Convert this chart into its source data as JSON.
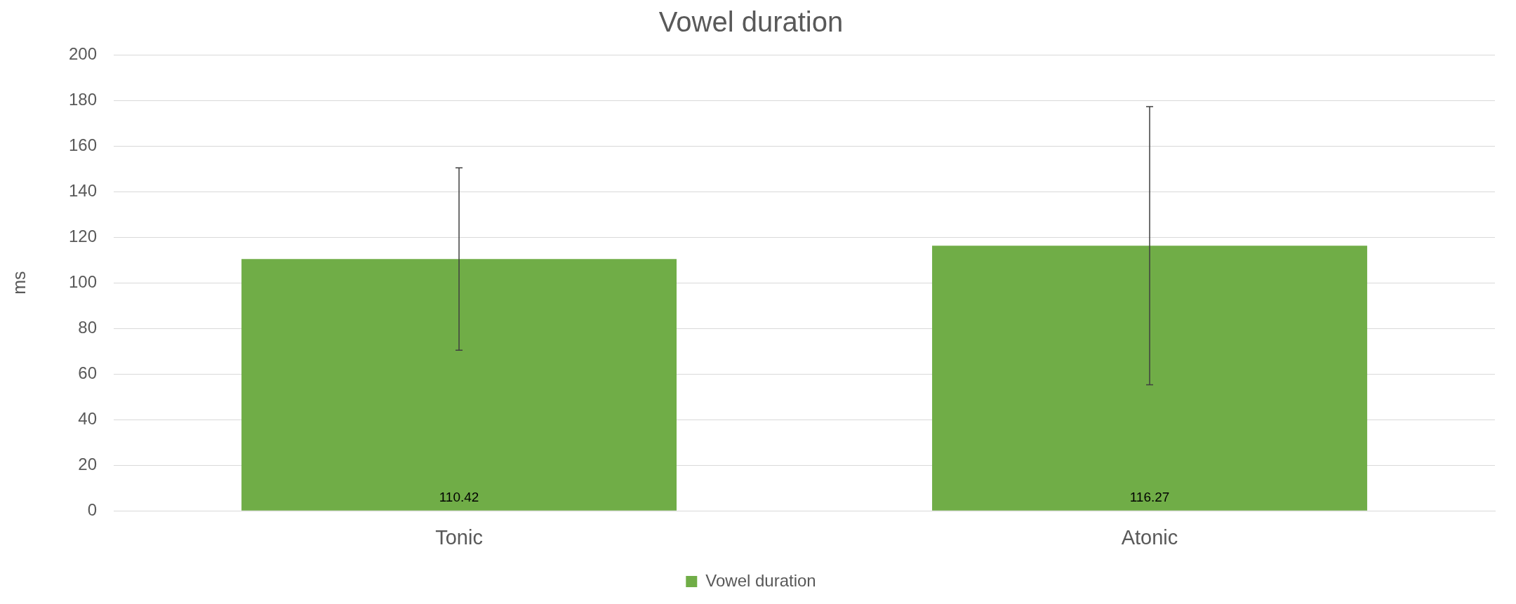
{
  "chart_data": {
    "type": "bar",
    "title": "Vowel duration",
    "ylabel": "ms",
    "categories": [
      "Tonic",
      "Atonic"
    ],
    "series": [
      {
        "name": "Vowel duration",
        "color": "#70ad47",
        "values": [
          110.42,
          116.27
        ],
        "errors": [
          40,
          61
        ]
      }
    ],
    "ylim": [
      0,
      200
    ],
    "yticks": [
      0,
      20,
      40,
      60,
      80,
      100,
      120,
      140,
      160,
      180,
      200
    ],
    "grid": "y",
    "legend": "bottom",
    "data_labels": true
  }
}
